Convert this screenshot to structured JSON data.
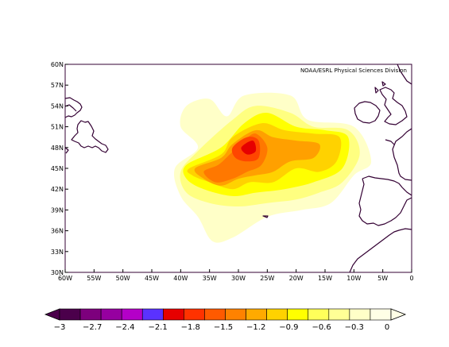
{
  "credit": "NOAA/ESRL Physical Sciences Division",
  "map": {
    "lon_range": [
      -60,
      0
    ],
    "lat_range": [
      30,
      60
    ],
    "x_tick_labels": [
      {
        "lon": -60,
        "label": "60W"
      },
      {
        "lon": -55,
        "label": "55W"
      },
      {
        "lon": -50,
        "label": "50W"
      },
      {
        "lon": -45,
        "label": "45W"
      },
      {
        "lon": -40,
        "label": "40W"
      },
      {
        "lon": -35,
        "label": "35W"
      },
      {
        "lon": -30,
        "label": "30W"
      },
      {
        "lon": -25,
        "label": "25W"
      },
      {
        "lon": -20,
        "label": "20W"
      },
      {
        "lon": -15,
        "label": "15W"
      },
      {
        "lon": -10,
        "label": "10W"
      },
      {
        "lon": -5,
        "label": "5W"
      },
      {
        "lon": 0,
        "label": "0"
      }
    ],
    "y_tick_labels": [
      {
        "lat": 30,
        "label": "30N"
      },
      {
        "lat": 33,
        "label": "33N"
      },
      {
        "lat": 36,
        "label": "36N"
      },
      {
        "lat": 39,
        "label": "39N"
      },
      {
        "lat": 42,
        "label": "42N"
      },
      {
        "lat": 45,
        "label": "45N"
      },
      {
        "lat": 48,
        "label": "48N"
      },
      {
        "lat": 51,
        "label": "51N"
      },
      {
        "lat": 54,
        "label": "54N"
      },
      {
        "lat": 57,
        "label": "57N"
      },
      {
        "lat": 60,
        "label": "60N"
      }
    ],
    "coast_color": "#330033"
  },
  "anomaly_regions": [
    {
      "level": -0.15,
      "color": "#ffffc8",
      "points": [
        [
          -39,
          54
        ],
        [
          -35,
          55
        ],
        [
          -32,
          52.5
        ],
        [
          -29,
          55.5
        ],
        [
          -21,
          55.5
        ],
        [
          -18,
          52
        ],
        [
          -10,
          51
        ],
        [
          -7,
          46
        ],
        [
          -10,
          44
        ],
        [
          -14,
          40
        ],
        [
          -19,
          39
        ],
        [
          -25,
          38
        ],
        [
          -31,
          35
        ],
        [
          -34.5,
          34.5
        ],
        [
          -37,
          38
        ],
        [
          -40,
          41
        ],
        [
          -41,
          45
        ],
        [
          -37,
          48
        ],
        [
          -40,
          51
        ]
      ]
    },
    {
      "level": -0.45,
      "color": "#ffff80",
      "points": [
        [
          -37,
          47.5
        ],
        [
          -31,
          52
        ],
        [
          -27,
          54
        ],
        [
          -21,
          53
        ],
        [
          -17,
          51
        ],
        [
          -11,
          50.5
        ],
        [
          -9,
          47
        ],
        [
          -12,
          43
        ],
        [
          -16,
          41.5
        ],
        [
          -20,
          40.5
        ],
        [
          -25,
          40
        ],
        [
          -30,
          39.5
        ],
        [
          -35,
          40
        ],
        [
          -39,
          41.5
        ],
        [
          -40,
          44.5
        ]
      ]
    },
    {
      "level": -0.75,
      "color": "#ffff00",
      "points": [
        [
          -39,
          45.5
        ],
        [
          -33,
          48
        ],
        [
          -29,
          51.5
        ],
        [
          -25,
          53
        ],
        [
          -20,
          51
        ],
        [
          -15,
          50.5
        ],
        [
          -11,
          49.5
        ],
        [
          -12,
          45
        ],
        [
          -17,
          43
        ],
        [
          -22,
          42
        ],
        [
          -27,
          41.5
        ],
        [
          -31,
          41
        ],
        [
          -36,
          42
        ],
        [
          -39,
          43.5
        ]
      ]
    },
    {
      "level": -1.05,
      "color": "#ffd200",
      "points": [
        [
          -38.5,
          45
        ],
        [
          -33,
          47
        ],
        [
          -31,
          49.5
        ],
        [
          -26,
          51.5
        ],
        [
          -22,
          50.5
        ],
        [
          -17,
          50
        ],
        [
          -12.5,
          49.5
        ],
        [
          -13,
          46
        ],
        [
          -16,
          44.5
        ],
        [
          -20,
          45
        ],
        [
          -24,
          43
        ],
        [
          -28,
          43
        ],
        [
          -31,
          42
        ],
        [
          -35,
          43
        ],
        [
          -38,
          44
        ]
      ]
    },
    {
      "level": -1.35,
      "color": "#ffa000",
      "points": [
        [
          -37.5,
          45
        ],
        [
          -33,
          46.5
        ],
        [
          -31,
          48.5
        ],
        [
          -27,
          50.5
        ],
        [
          -24,
          49.5
        ],
        [
          -20,
          49
        ],
        [
          -16,
          48.5
        ],
        [
          -17,
          46.5
        ],
        [
          -21,
          46
        ],
        [
          -24,
          44.5
        ],
        [
          -27,
          44
        ],
        [
          -30,
          43.5
        ],
        [
          -33,
          42.5
        ],
        [
          -36,
          43.5
        ]
      ]
    },
    {
      "level": -1.65,
      "color": "#ff7800",
      "points": [
        [
          -36,
          44.5
        ],
        [
          -33.5,
          45.5
        ],
        [
          -31.5,
          47
        ],
        [
          -29,
          49
        ],
        [
          -27,
          50
        ],
        [
          -25,
          48
        ],
        [
          -26,
          45.5
        ],
        [
          -28.5,
          44.5
        ],
        [
          -31,
          43.5
        ],
        [
          -34,
          43
        ]
      ]
    },
    {
      "level": -1.95,
      "color": "#ff4600",
      "points": [
        [
          -31,
          48
        ],
        [
          -28.5,
          49.5
        ],
        [
          -26.5,
          49
        ],
        [
          -26.5,
          46.5
        ],
        [
          -28.5,
          46
        ],
        [
          -30.5,
          46.5
        ]
      ]
    },
    {
      "level": -2.25,
      "color": "#e60000",
      "points": [
        [
          -29.5,
          48
        ],
        [
          -27.5,
          49
        ],
        [
          -27,
          47.5
        ],
        [
          -28.5,
          47
        ]
      ]
    }
  ],
  "colorbar": {
    "colors": [
      "#4b004b",
      "#7d007d",
      "#9600a0",
      "#b400c8",
      "#5a32ff",
      "#e60000",
      "#ff3200",
      "#ff5a00",
      "#ff8200",
      "#ffaa00",
      "#ffd200",
      "#ffff00",
      "#ffff5a",
      "#ffff96",
      "#ffffc8",
      "#ffffe6"
    ],
    "tick_labels": [
      "−3",
      "−2.7",
      "−2.4",
      "−2.1",
      "−1.8",
      "−1.5",
      "−1.2",
      "−0.9",
      "−0.6",
      "−0.3",
      "0"
    ]
  }
}
